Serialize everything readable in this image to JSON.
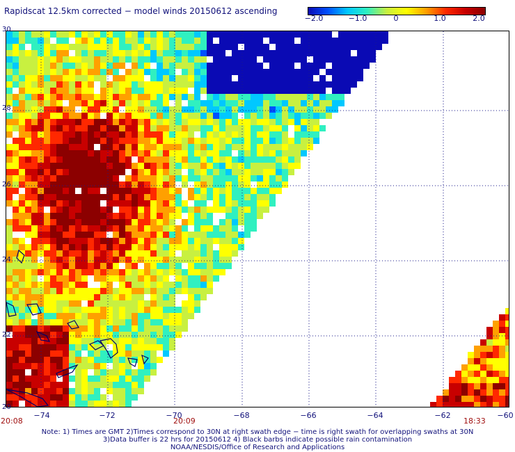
{
  "title": "Rapidscat 12.5km corrected − model winds 20150612 ascending",
  "colorbar": {
    "labels": [
      "−2.0",
      "−1.0",
      "0",
      "1.0",
      "2.0"
    ],
    "stops": [
      "#0a0ab4",
      "#0050ff",
      "#00c8ff",
      "#30f0c0",
      "#c8f040",
      "#ffff00",
      "#ffa000",
      "#ff2800",
      "#c80000",
      "#8c0000"
    ]
  },
  "axes": {
    "lat_labels": [
      "30",
      "28",
      "26",
      "24",
      "22",
      "20"
    ],
    "lon_labels": [
      "−74",
      "−72",
      "−70",
      "−68",
      "−66",
      "−64",
      "−62",
      "−60"
    ]
  },
  "swath_times": {
    "left_start": "20:08",
    "left_end": "20:09",
    "right": "18:33"
  },
  "notes": [
    "Note: 1) Times are GMT 2)Times correspond to 30N at right swath edge − time is right swath for overlapping swaths at 30N",
    "3)Data buffer is 22 hrs for 20150612 4) Black barbs indicate possible rain contamination",
    "NOAA/NESDIS/Office of Research and Applications"
  ]
}
